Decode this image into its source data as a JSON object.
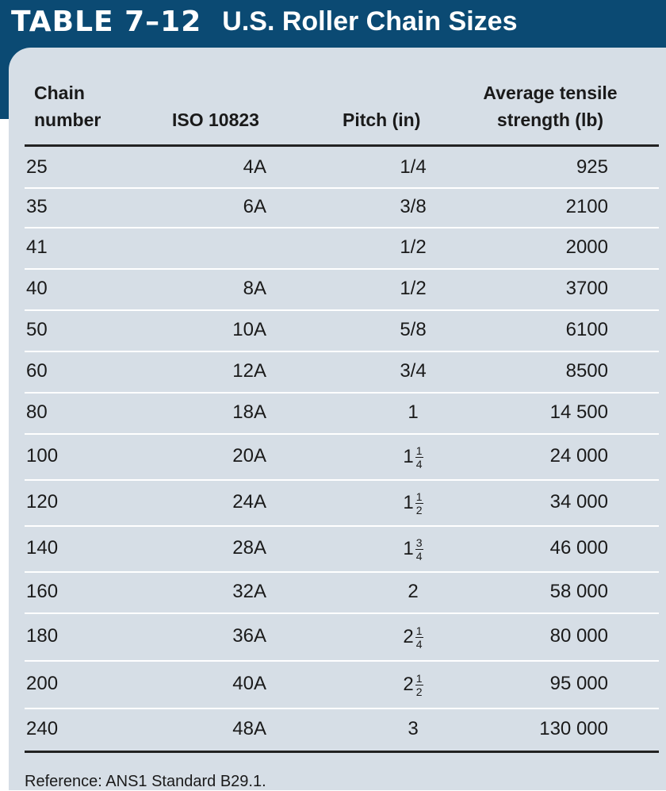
{
  "title": {
    "number": "TABLE 7–12",
    "text": "U.S. Roller Chain Sizes"
  },
  "headers": {
    "chain_line1": "Chain",
    "chain_line2": "number",
    "iso": "ISO 10823",
    "pitch": "Pitch (in)",
    "tensile_line1": "Average tensile",
    "tensile_line2": "strength (lb)"
  },
  "rows": [
    {
      "chain": "25",
      "iso": "4A",
      "pitch_whole": "1/4",
      "pitch_num": "",
      "pitch_den": "",
      "tensile": "925"
    },
    {
      "chain": "35",
      "iso": "6A",
      "pitch_whole": "3/8",
      "pitch_num": "",
      "pitch_den": "",
      "tensile": "2100"
    },
    {
      "chain": "41",
      "iso": "",
      "pitch_whole": "1/2",
      "pitch_num": "",
      "pitch_den": "",
      "tensile": "2000"
    },
    {
      "chain": "40",
      "iso": "8A",
      "pitch_whole": "1/2",
      "pitch_num": "",
      "pitch_den": "",
      "tensile": "3700"
    },
    {
      "chain": "50",
      "iso": "10A",
      "pitch_whole": "5/8",
      "pitch_num": "",
      "pitch_den": "",
      "tensile": "6100"
    },
    {
      "chain": "60",
      "iso": "12A",
      "pitch_whole": "3/4",
      "pitch_num": "",
      "pitch_den": "",
      "tensile": "8500"
    },
    {
      "chain": "80",
      "iso": "18A",
      "pitch_whole": "1",
      "pitch_num": "",
      "pitch_den": "",
      "tensile": "14 500"
    },
    {
      "chain": "100",
      "iso": "20A",
      "pitch_whole": "1",
      "pitch_num": "1",
      "pitch_den": "4",
      "tensile": "24 000"
    },
    {
      "chain": "120",
      "iso": "24A",
      "pitch_whole": "1",
      "pitch_num": "1",
      "pitch_den": "2",
      "tensile": "34 000"
    },
    {
      "chain": "140",
      "iso": "28A",
      "pitch_whole": "1",
      "pitch_num": "3",
      "pitch_den": "4",
      "tensile": "46 000"
    },
    {
      "chain": "160",
      "iso": "32A",
      "pitch_whole": "2",
      "pitch_num": "",
      "pitch_den": "",
      "tensile": "58 000"
    },
    {
      "chain": "180",
      "iso": "36A",
      "pitch_whole": "2",
      "pitch_num": "1",
      "pitch_den": "4",
      "tensile": "80 000"
    },
    {
      "chain": "200",
      "iso": "40A",
      "pitch_whole": "2",
      "pitch_num": "1",
      "pitch_den": "2",
      "tensile": "95 000"
    },
    {
      "chain": "240",
      "iso": "48A",
      "pitch_whole": "3",
      "pitch_num": "",
      "pitch_den": "",
      "tensile": "130 000"
    }
  ],
  "footer": "Reference: ANS1 Standard B29.1.",
  "colors": {
    "banner": "#0b4a73",
    "panel": "#d6dee6"
  }
}
